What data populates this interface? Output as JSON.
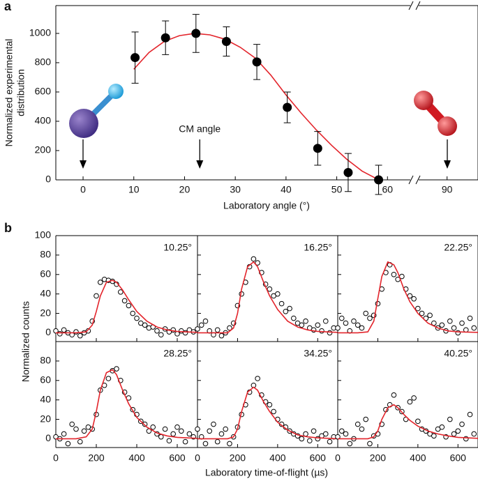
{
  "chart_data": [
    {
      "type": "scatter",
      "panel_label": "a",
      "ylabel": [
        "Normalized experimental",
        "distribution"
      ],
      "xlabel": "Laboratory angle (°)",
      "xlim": [
        -5.37,
        64.5
      ],
      "xticks": [
        0,
        10,
        20,
        30,
        40,
        50,
        60
      ],
      "x2lim": [
        84.4,
        96.1
      ],
      "x2ticks": [
        90
      ],
      "ylim": [
        0,
        1190
      ],
      "yticks": [
        0,
        200,
        400,
        600,
        800,
        1000
      ],
      "points": {
        "color": "#000000",
        "x": [
          10.25,
          16.25,
          22.25,
          28.25,
          34.25,
          40.25,
          46.25,
          52.25,
          58.25
        ],
        "values": [
          835,
          970,
          1000,
          945,
          805,
          495,
          215,
          50,
          0
        ],
        "errors": [
          175,
          115,
          130,
          100,
          120,
          105,
          115,
          130,
          100
        ]
      },
      "fit": {
        "color": "#e3242b",
        "x": [
          10,
          13,
          16,
          19,
          22,
          25,
          28,
          31,
          34,
          37,
          40,
          43,
          46,
          49,
          52,
          55,
          58
        ],
        "values": [
          755,
          870,
          945,
          985,
          1000,
          990,
          960,
          905,
          830,
          715,
          580,
          455,
          340,
          235,
          140,
          60,
          5
        ]
      },
      "annotation": {
        "text": "CM angle",
        "x": 23
      }
    },
    {
      "type": "scatter",
      "panel_label": "b",
      "title": "10.25°",
      "ylabel": "Normalized counts",
      "xlabel": "Laboratory time-of-flight (µs)",
      "xlim": [
        0,
        700
      ],
      "xticks": [
        0,
        200,
        400,
        600
      ],
      "ylim": [
        -9,
        100
      ],
      "yticks": [
        0,
        20,
        40,
        60,
        80,
        100
      ],
      "color": "#000000",
      "x": [
        0,
        20,
        40,
        60,
        80,
        100,
        120,
        140,
        160,
        180,
        200,
        220,
        240,
        260,
        280,
        300,
        320,
        340,
        360,
        380,
        400,
        420,
        440,
        460,
        480,
        500,
        520,
        540,
        560,
        580,
        600,
        620,
        640,
        660,
        680
      ],
      "values": [
        2,
        -1,
        3,
        0,
        -2,
        1,
        -3,
        0,
        2,
        12,
        38,
        52,
        55,
        54,
        53,
        50,
        42,
        33,
        28,
        20,
        15,
        10,
        8,
        5,
        6,
        2,
        -2,
        4,
        1,
        3,
        -1,
        2,
        0,
        3,
        1
      ],
      "fit": {
        "color": "#e3242b",
        "x": [
          0,
          100,
          150,
          180,
          200,
          220,
          250,
          280,
          300,
          330,
          360,
          400,
          450,
          500,
          550,
          600,
          700
        ],
        "values": [
          0,
          0,
          1,
          8,
          22,
          38,
          52,
          54,
          52,
          44,
          34,
          22,
          12,
          6,
          3,
          1.5,
          0.5
        ]
      }
    },
    {
      "type": "scatter",
      "title": "16.25°",
      "xlim": [
        0,
        700
      ],
      "xticks": [
        0,
        200,
        400,
        600
      ],
      "ylim": [
        -9,
        100
      ],
      "yticks": [
        0,
        20,
        40,
        60,
        80,
        100
      ],
      "color": "#000000",
      "x": [
        0,
        20,
        40,
        60,
        80,
        100,
        120,
        140,
        160,
        180,
        200,
        220,
        240,
        260,
        280,
        300,
        320,
        340,
        360,
        380,
        400,
        420,
        440,
        460,
        480,
        500,
        520,
        540,
        560,
        580,
        600,
        620,
        640,
        660,
        680
      ],
      "values": [
        4,
        8,
        12,
        2,
        -2,
        3,
        -3,
        0,
        5,
        10,
        28,
        40,
        52,
        68,
        76,
        72,
        62,
        50,
        45,
        38,
        40,
        30,
        22,
        25,
        15,
        10,
        8,
        12,
        5,
        3,
        8,
        2,
        12,
        0,
        5
      ],
      "fit": {
        "color": "#e3242b",
        "x": [
          0,
          100,
          150,
          180,
          200,
          220,
          250,
          280,
          300,
          330,
          360,
          400,
          450,
          500,
          550,
          600,
          700
        ],
        "values": [
          0,
          0,
          0,
          5,
          20,
          45,
          68,
          73,
          68,
          52,
          38,
          24,
          12,
          6,
          3,
          1.5,
          0.5
        ]
      }
    },
    {
      "type": "scatter",
      "title": "22.25°",
      "xlim": [
        0,
        700
      ],
      "xticks": [
        0,
        200,
        400,
        600
      ],
      "ylim": [
        -9,
        100
      ],
      "yticks": [
        0,
        20,
        40,
        60,
        80,
        100
      ],
      "color": "#000000",
      "x": [
        0,
        20,
        40,
        60,
        80,
        100,
        120,
        140,
        160,
        180,
        200,
        220,
        240,
        260,
        280,
        300,
        320,
        340,
        360,
        380,
        400,
        420,
        440,
        460,
        480,
        500,
        520,
        540,
        560,
        580,
        600,
        620,
        640,
        660,
        680
      ],
      "values": [
        5,
        15,
        10,
        2,
        12,
        8,
        5,
        20,
        15,
        18,
        30,
        45,
        62,
        70,
        60,
        55,
        58,
        45,
        38,
        35,
        25,
        20,
        15,
        18,
        10,
        5,
        8,
        2,
        12,
        5,
        0,
        10,
        3,
        15,
        5
      ],
      "fit": {
        "color": "#e3242b",
        "x": [
          0,
          100,
          150,
          180,
          200,
          220,
          250,
          280,
          300,
          330,
          360,
          400,
          450,
          500,
          550,
          600,
          700
        ],
        "values": [
          0,
          0,
          1,
          12,
          35,
          58,
          73,
          70,
          62,
          45,
          32,
          20,
          10,
          5,
          2,
          1,
          0.5
        ]
      }
    },
    {
      "type": "scatter",
      "title": "28.25°",
      "xlim": [
        0,
        700
      ],
      "xticks": [
        0,
        200,
        400,
        600
      ],
      "ylim": [
        -9,
        100
      ],
      "yticks": [
        0,
        20,
        40,
        60,
        80
      ],
      "color": "#000000",
      "x": [
        0,
        20,
        40,
        60,
        80,
        100,
        120,
        140,
        160,
        180,
        200,
        220,
        240,
        260,
        280,
        300,
        320,
        340,
        360,
        380,
        400,
        420,
        440,
        460,
        480,
        500,
        520,
        540,
        560,
        580,
        600,
        620,
        640,
        660,
        680
      ],
      "values": [
        2,
        0,
        5,
        -5,
        15,
        10,
        -3,
        8,
        12,
        10,
        25,
        50,
        55,
        62,
        70,
        72,
        60,
        48,
        42,
        30,
        25,
        18,
        15,
        8,
        12,
        5,
        2,
        10,
        -2,
        5,
        12,
        8,
        -3,
        5,
        2
      ],
      "fit": {
        "color": "#e3242b",
        "x": [
          0,
          100,
          150,
          180,
          200,
          220,
          250,
          280,
          300,
          330,
          360,
          400,
          450,
          500,
          550,
          600,
          700
        ],
        "values": [
          0,
          0,
          2,
          10,
          28,
          50,
          68,
          71,
          66,
          50,
          36,
          22,
          12,
          6,
          3,
          1.5,
          0.5
        ]
      }
    },
    {
      "type": "scatter",
      "title": "34.25°",
      "xlim": [
        0,
        700
      ],
      "xticks": [
        0,
        200,
        400,
        600
      ],
      "ylim": [
        -9,
        100
      ],
      "yticks": [
        0,
        20,
        40,
        60,
        80
      ],
      "color": "#000000",
      "x": [
        0,
        20,
        40,
        60,
        80,
        100,
        120,
        140,
        160,
        180,
        200,
        220,
        240,
        260,
        280,
        300,
        320,
        340,
        360,
        380,
        400,
        420,
        440,
        460,
        480,
        500,
        520,
        540,
        560,
        580,
        600,
        620,
        640,
        660,
        680
      ],
      "values": [
        10,
        2,
        -5,
        8,
        15,
        -3,
        5,
        10,
        -5,
        2,
        12,
        25,
        35,
        48,
        55,
        62,
        45,
        38,
        35,
        28,
        20,
        15,
        12,
        8,
        5,
        3,
        0,
        5,
        -2,
        8,
        0,
        3,
        5,
        -3,
        2
      ],
      "fit": {
        "color": "#e3242b",
        "x": [
          0,
          100,
          150,
          180,
          200,
          220,
          250,
          280,
          300,
          330,
          360,
          400,
          450,
          500,
          550,
          600,
          700
        ],
        "values": [
          0,
          0,
          0,
          2,
          10,
          28,
          48,
          53,
          50,
          38,
          28,
          17,
          9,
          4,
          2,
          1,
          0
        ]
      }
    },
    {
      "type": "scatter",
      "title": "40.25°",
      "xlim": [
        0,
        700
      ],
      "xticks": [
        0,
        200,
        400,
        600
      ],
      "ylim": [
        -9,
        100
      ],
      "yticks": [
        0,
        20,
        40,
        60,
        80
      ],
      "color": "#000000",
      "x": [
        0,
        20,
        40,
        60,
        80,
        100,
        120,
        140,
        160,
        180,
        200,
        220,
        240,
        260,
        280,
        300,
        320,
        340,
        360,
        380,
        400,
        420,
        440,
        460,
        480,
        500,
        520,
        540,
        560,
        580,
        600,
        620,
        640,
        660,
        680
      ],
      "values": [
        2,
        8,
        5,
        -5,
        0,
        15,
        10,
        20,
        -5,
        3,
        5,
        15,
        30,
        35,
        45,
        32,
        28,
        20,
        38,
        42,
        18,
        10,
        8,
        5,
        3,
        10,
        12,
        2,
        20,
        5,
        8,
        15,
        0,
        25,
        5
      ],
      "fit": {
        "color": "#e3242b",
        "x": [
          0,
          100,
          150,
          180,
          200,
          220,
          250,
          280,
          300,
          330,
          360,
          400,
          450,
          500,
          550,
          600,
          700
        ],
        "values": [
          0,
          0,
          0,
          2,
          8,
          20,
          32,
          35,
          32,
          25,
          19,
          13,
          8,
          5,
          3,
          1.5,
          0.5
        ]
      }
    }
  ]
}
